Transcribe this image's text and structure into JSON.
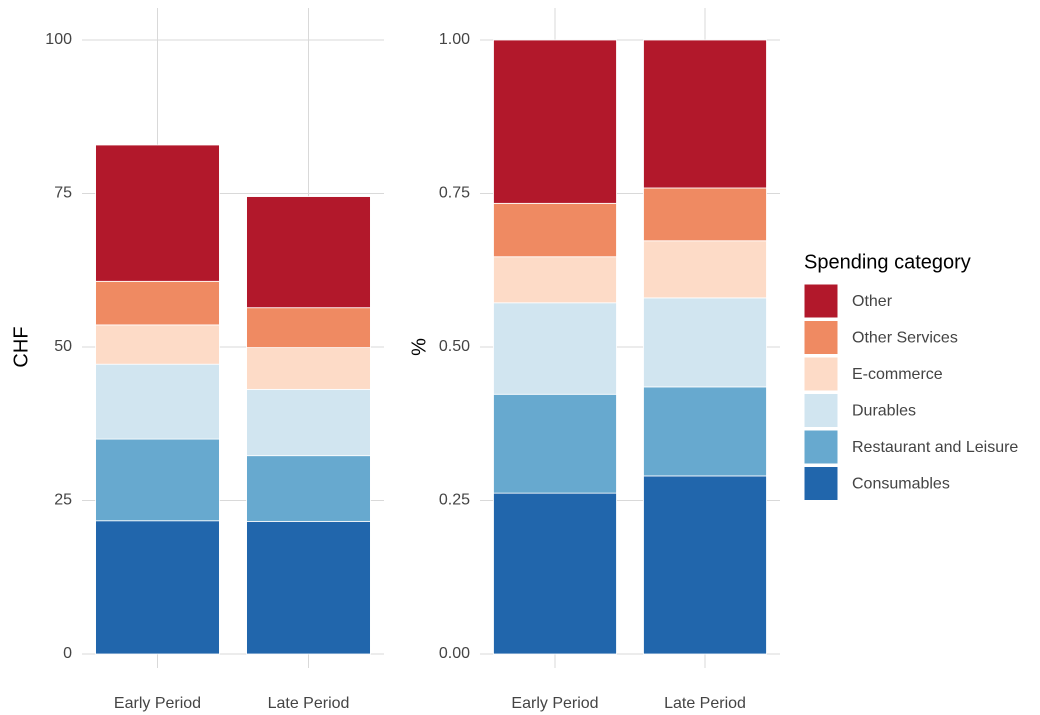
{
  "chart_data": [
    {
      "type": "bar",
      "stacked": true,
      "y_label": "CHF",
      "categories": [
        "Early Period",
        "Late Period"
      ],
      "series": [
        {
          "values": [
            21.7,
            21.6
          ]
        },
        {
          "values": [
            13.3,
            10.7
          ]
        },
        {
          "values": [
            12.2,
            10.8
          ]
        },
        {
          "values": [
            6.4,
            6.8
          ]
        },
        {
          "values": [
            7.1,
            6.5
          ]
        },
        {
          "values": [
            22.2,
            18.1
          ]
        }
      ],
      "ylim": [
        0,
        100
      ],
      "yticks": [
        0,
        25,
        50,
        75,
        100
      ],
      "grid": true
    },
    {
      "type": "bar",
      "stacked": true,
      "y_label": "%",
      "categories": [
        "Early Period",
        "Late Period"
      ],
      "series": [
        {
          "values": [
            0.262,
            0.29
          ]
        },
        {
          "values": [
            0.161,
            0.145
          ]
        },
        {
          "values": [
            0.149,
            0.145
          ]
        },
        {
          "values": [
            0.075,
            0.093
          ]
        },
        {
          "values": [
            0.087,
            0.086
          ]
        },
        {
          "values": [
            0.266,
            0.241
          ]
        }
      ],
      "ylim": [
        0,
        1
      ],
      "yticks": [
        {
          "value": 0,
          "label": "0.00"
        },
        {
          "value": 0.25,
          "label": "0.25"
        },
        {
          "value": 0.5,
          "label": "0.50"
        },
        {
          "value": 0.75,
          "label": "0.75"
        },
        {
          "value": 1,
          "label": "1.00"
        }
      ],
      "grid": true
    }
  ],
  "legend": {
    "title": "Spending category",
    "position": "right",
    "series": [
      {
        "name": "Consumables",
        "color": "#2166ac"
      },
      {
        "name": "Restaurant and Leisure",
        "color": "#67a9cf"
      },
      {
        "name": "Durables",
        "color": "#d1e5f0"
      },
      {
        "name": "E-commerce",
        "color": "#fddbc7"
      },
      {
        "name": "Other Services",
        "color": "#ef8a62"
      },
      {
        "name": "Other",
        "color": "#b2182b"
      }
    ]
  }
}
